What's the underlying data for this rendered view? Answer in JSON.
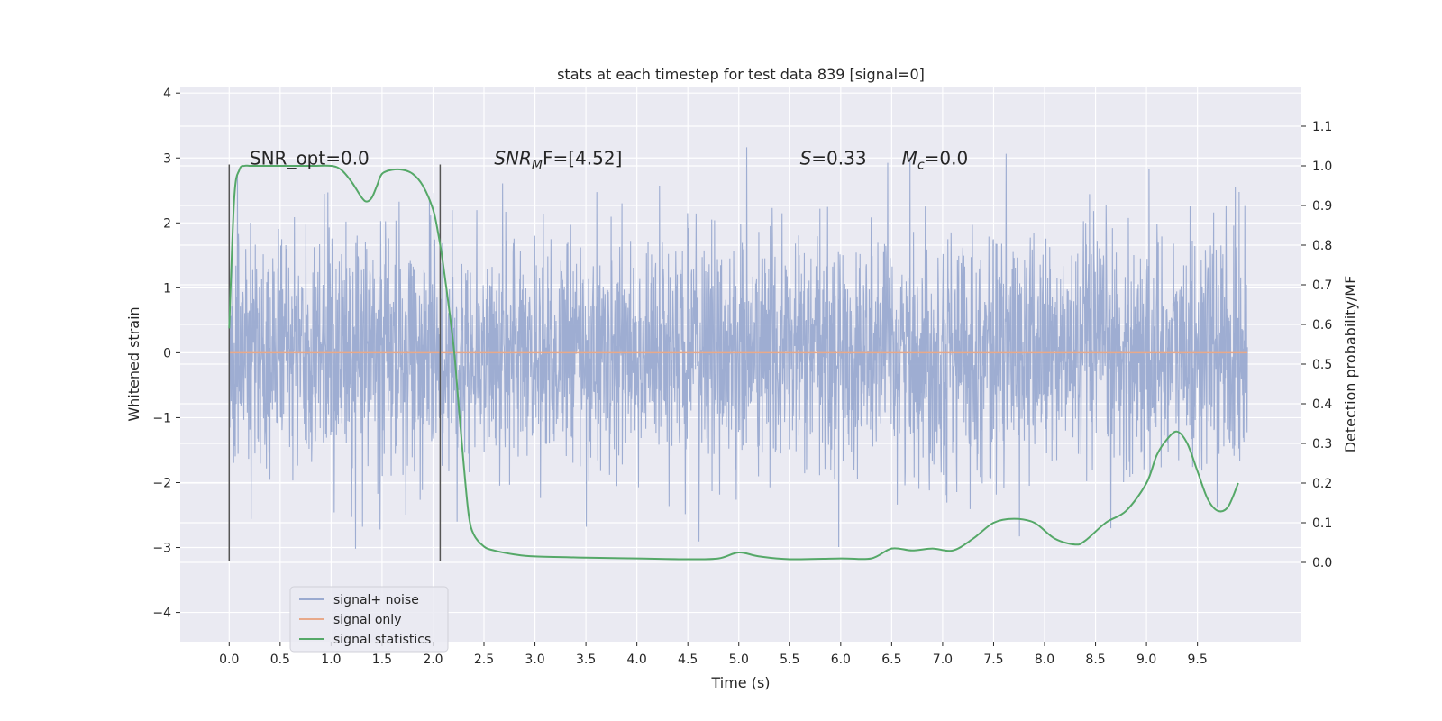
{
  "chart_data": {
    "type": "line",
    "title": "stats at each timestep for test data 839 [signal=0]",
    "xlabel": "Time (s)",
    "ylabel": "Whitened strain",
    "y2label": "Detection probability/MF",
    "xlim": [
      -0.48,
      10.52
    ],
    "ylim": [
      -4.45,
      4.1
    ],
    "y2lim": [
      -0.2,
      1.2
    ],
    "x_ticks": [
      "0.0",
      "0.5",
      "1.0",
      "1.5",
      "2.0",
      "2.5",
      "3.0",
      "3.5",
      "4.0",
      "4.5",
      "5.0",
      "5.5",
      "6.0",
      "6.5",
      "7.0",
      "7.5",
      "8.0",
      "8.5",
      "9.0",
      "9.5"
    ],
    "y_ticks": [
      "4",
      "3",
      "2",
      "1",
      "0",
      "−1",
      "−2",
      "−3",
      "−4"
    ],
    "y2_ticks": [
      "1.1",
      "1.0",
      "0.9",
      "0.8",
      "0.7",
      "0.6",
      "0.5",
      "0.4",
      "0.3",
      "0.2",
      "0.1",
      "0.0"
    ],
    "grid": true,
    "legend_position": "lower-left",
    "series": [
      {
        "name": "signal+ noise",
        "color": "#9aaad0",
        "axis": "left",
        "style": "dense noise",
        "x_range": [
          0.0,
          9.99
        ],
        "approx_std": 0.9
      },
      {
        "name": "signal only",
        "color": "#e8a98a",
        "axis": "left",
        "x": [
          0.0,
          9.99
        ],
        "y": [
          0.0,
          0.0
        ]
      },
      {
        "name": "signal statistics",
        "color": "#55a868",
        "axis": "right",
        "x": [
          0.0,
          0.05,
          0.1,
          0.15,
          0.2,
          0.3,
          0.5,
          0.8,
          1.0,
          1.1,
          1.2,
          1.3,
          1.35,
          1.4,
          1.45,
          1.5,
          1.6,
          1.7,
          1.8,
          1.9,
          2.0,
          2.05,
          2.1,
          2.2,
          2.25,
          2.3,
          2.35,
          2.4,
          2.5,
          2.6,
          2.8,
          3.0,
          3.5,
          4.0,
          4.5,
          4.8,
          5.0,
          5.2,
          5.5,
          6.0,
          6.3,
          6.5,
          6.7,
          6.9,
          7.1,
          7.3,
          7.5,
          7.7,
          7.9,
          8.1,
          8.3,
          8.4,
          8.6,
          8.8,
          9.0,
          9.1,
          9.2,
          9.3,
          9.4,
          9.5,
          9.6,
          9.7,
          9.8,
          9.9
        ],
        "y": [
          0.59,
          0.92,
          0.99,
          1.0,
          1.0,
          1.0,
          1.0,
          1.0,
          1.0,
          0.99,
          0.96,
          0.92,
          0.91,
          0.92,
          0.95,
          0.98,
          0.99,
          0.99,
          0.98,
          0.95,
          0.89,
          0.83,
          0.75,
          0.55,
          0.4,
          0.25,
          0.12,
          0.07,
          0.04,
          0.03,
          0.02,
          0.015,
          0.012,
          0.01,
          0.008,
          0.01,
          0.025,
          0.015,
          0.008,
          0.01,
          0.01,
          0.035,
          0.03,
          0.035,
          0.03,
          0.06,
          0.1,
          0.11,
          0.1,
          0.06,
          0.045,
          0.055,
          0.1,
          0.13,
          0.2,
          0.27,
          0.31,
          0.33,
          0.3,
          0.23,
          0.16,
          0.13,
          0.14,
          0.2
        ]
      }
    ],
    "vertical_lines": [
      {
        "x": 0.0,
        "y": [
          -3.2,
          2.9
        ],
        "color": "#555555"
      },
      {
        "x": 2.07,
        "y": [
          -3.2,
          2.9
        ],
        "color": "#555555"
      }
    ],
    "annotations": [
      {
        "text": "SNR_opt=0.0",
        "x": 0.2,
        "y": 3.0
      },
      {
        "text": "SNR",
        "sub": "M",
        "rest": "F=[4.52]",
        "italic": true,
        "x": 2.6,
        "y": 3.0
      },
      {
        "text": "S",
        "rest": "=0.33",
        "italic": true,
        "x": 5.6,
        "y": 3.0
      },
      {
        "text": "M",
        "sub": "c",
        "rest": "=0.0",
        "italic": true,
        "x": 6.6,
        "y": 3.0
      }
    ]
  }
}
